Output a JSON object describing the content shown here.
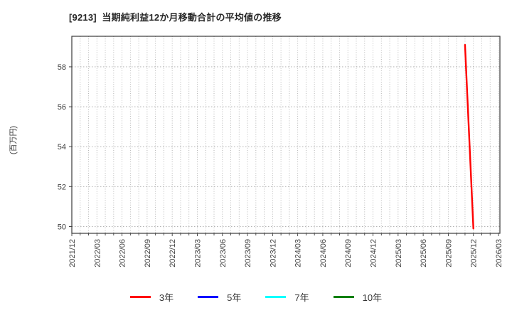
{
  "chart_data": {
    "type": "line",
    "title": "[9213]  当期純利益12か月移動合計の平均値の推移",
    "ylabel": "(百万円)",
    "x_tick_labels": [
      "2021/12",
      "2022/03",
      "2022/06",
      "2022/09",
      "2022/12",
      "2023/03",
      "2023/06",
      "2023/09",
      "2023/12",
      "2024/03",
      "2024/06",
      "2024/09",
      "2024/12",
      "2025/03",
      "2025/06",
      "2025/09",
      "2025/12",
      "2026/03"
    ],
    "months_per_label": 3,
    "y_ticks": [
      50,
      52,
      54,
      56,
      58
    ],
    "ylim": [
      49.66,
      59.53
    ],
    "grid": {
      "style": "dotted",
      "vertical": "monthly",
      "horizontal": "every-2-units",
      "color": "#b0b0b0"
    },
    "axis_color": "#3a3a3a",
    "tick_label_color": "#404040",
    "legend_position": "bottom-center",
    "series": [
      {
        "name": "3年",
        "color": "#ff0000",
        "points": [
          {
            "x": "2025/11",
            "y": 59.1
          },
          {
            "x": "2025/12",
            "y": 49.9
          }
        ]
      },
      {
        "name": "5年",
        "color": "#0000ff",
        "points": []
      },
      {
        "name": "7年",
        "color": "#00ffff",
        "points": []
      },
      {
        "name": "10年",
        "color": "#008000",
        "points": []
      }
    ]
  }
}
